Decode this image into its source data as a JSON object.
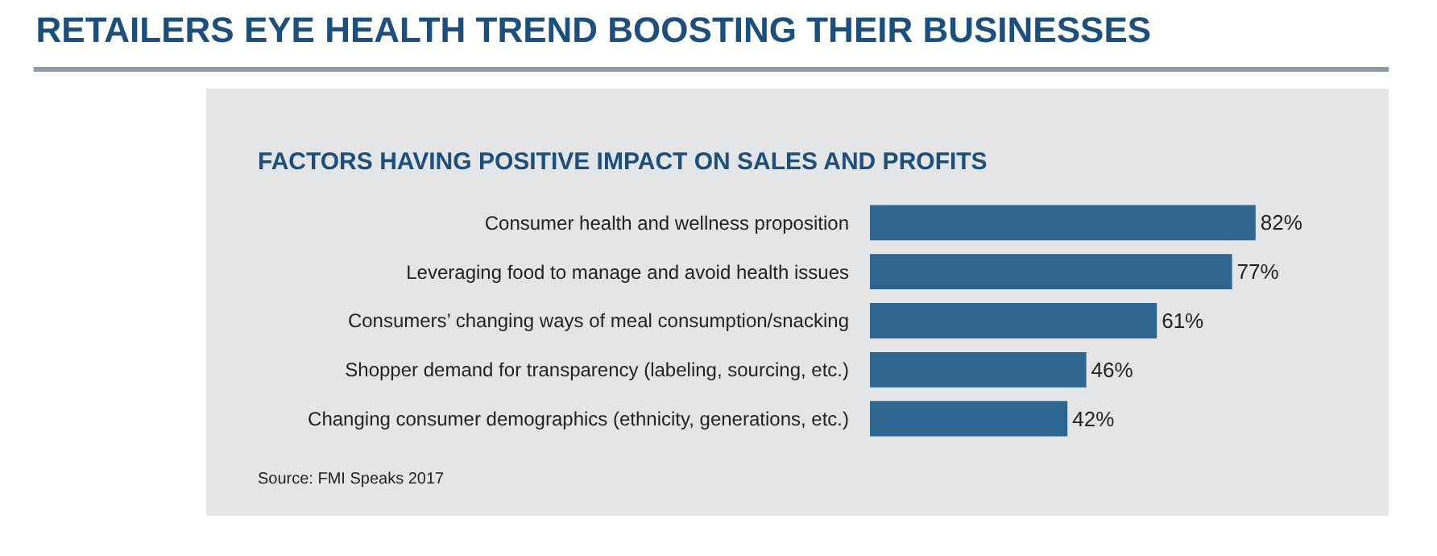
{
  "chart_data": {
    "type": "bar",
    "orientation": "horizontal",
    "title": "RETAILERS EYE HEALTH TREND BOOSTING THEIR BUSINESSES",
    "subtitle": "FACTORS HAVING POSITIVE IMPACT ON SALES AND PROFITS",
    "categories": [
      "Consumer health and wellness proposition",
      "Leveraging food to manage and avoid health issues",
      "Consumers’ changing ways of meal consumption/snacking",
      "Shopper demand for transparency (labeling, sourcing, etc.)",
      "Changing consumer demographics (ethnicity, generations, etc.)"
    ],
    "values": [
      82,
      77,
      61,
      46,
      42
    ],
    "value_labels": [
      "82%",
      "77%",
      "61%",
      "46%",
      "42%"
    ],
    "color": "#2f6690",
    "tick_labels": "y",
    "grid": false,
    "legend": false,
    "annotations": [
      "Source: FMI Speaks 2017"
    ]
  }
}
